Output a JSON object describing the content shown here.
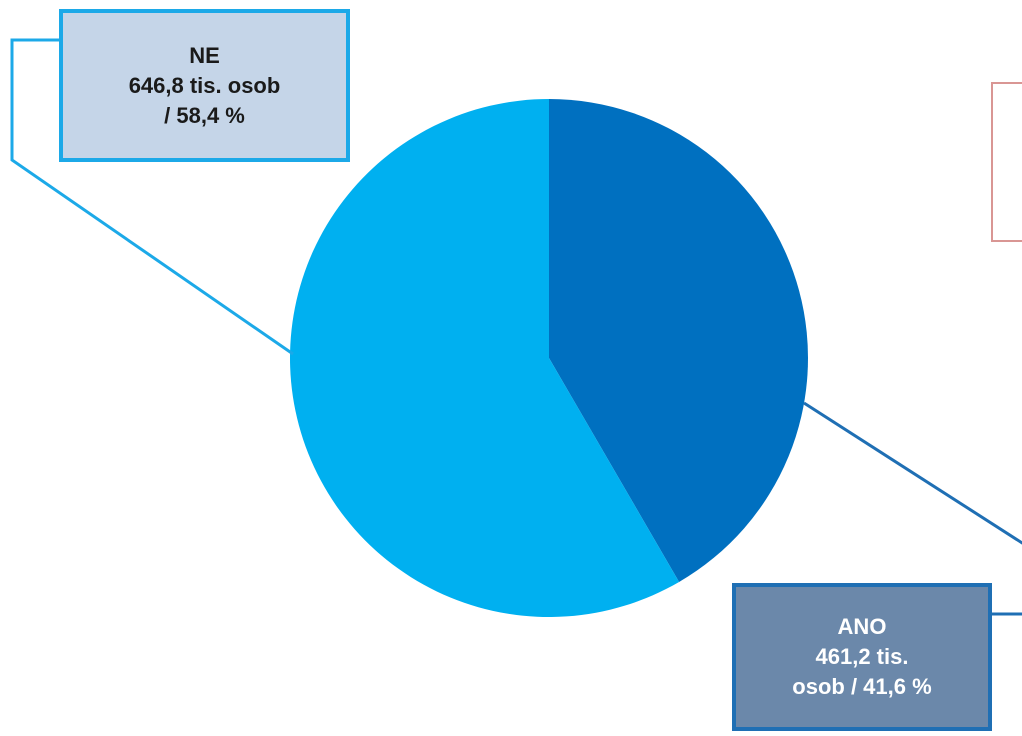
{
  "chart_data": {
    "type": "pie",
    "title": "",
    "slices": [
      {
        "category": "ANO",
        "value_thousands": 461.2,
        "percent": 41.6,
        "label_lines": [
          "ANO",
          "461,2 tis.",
          "osob / 41,6 %"
        ],
        "color": "#0070c0"
      },
      {
        "category": "NE",
        "value_thousands": 646.8,
        "percent": 58.4,
        "label_lines": [
          "NE",
          "646,8 tis. osob",
          "/ 58,4 %"
        ],
        "color": "#00b0f0"
      }
    ],
    "start_angle_deg": 0,
    "direction": "clockwise",
    "legend": "none",
    "data_labels": "callout-boxes"
  },
  "colors": {
    "ano_slice": "#0070c0",
    "ne_slice": "#00b0f0",
    "ne_label_bg": "#c5d5e8",
    "ne_label_border": "#1ca9e8",
    "ano_label_bg": "#6b88aa",
    "ano_label_border": "#1f6fb4",
    "ne_leader": "#1ca9e8",
    "ano_leader": "#1f6fb4",
    "empty_box_border": "#d99694"
  }
}
